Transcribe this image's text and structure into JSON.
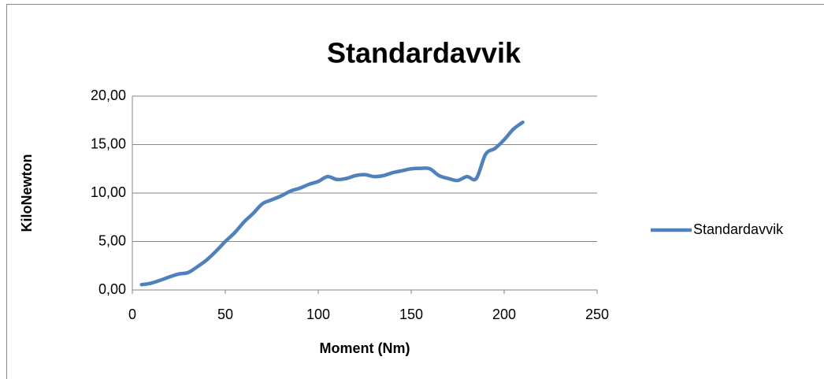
{
  "chart_data": {
    "type": "line",
    "title": "Standardavvik",
    "x_label": "Moment (Nm)",
    "y_label": "KiloNewton",
    "x": [
      5,
      10,
      15,
      20,
      25,
      30,
      35,
      40,
      45,
      50,
      55,
      60,
      65,
      70,
      75,
      80,
      85,
      90,
      95,
      100,
      105,
      110,
      115,
      120,
      125,
      130,
      135,
      140,
      145,
      150,
      155,
      160,
      165,
      170,
      175,
      180,
      185,
      190,
      195,
      200,
      205,
      210
    ],
    "series": [
      {
        "name": "Standardavvik",
        "color": "#4f81bd",
        "values": [
          0.55,
          0.7,
          1.0,
          1.35,
          1.65,
          1.8,
          2.4,
          3.1,
          4.0,
          5.0,
          5.9,
          7.0,
          7.9,
          8.9,
          9.3,
          9.7,
          10.2,
          10.5,
          10.9,
          11.2,
          11.7,
          11.4,
          11.5,
          11.8,
          11.9,
          11.7,
          11.8,
          12.1,
          12.3,
          12.5,
          12.55,
          12.5,
          11.8,
          11.5,
          11.3,
          11.7,
          11.5,
          14.0,
          14.6,
          15.5,
          16.6,
          17.3
        ]
      }
    ],
    "xlim": [
      0,
      250
    ],
    "xticks": [
      0,
      50,
      100,
      150,
      200,
      250
    ],
    "ylim": [
      0,
      20
    ],
    "yticks": [
      {
        "value": 0,
        "label": "0,00"
      },
      {
        "value": 5,
        "label": "5,00"
      },
      {
        "value": 10,
        "label": "10,00"
      },
      {
        "value": 15,
        "label": "15,00"
      },
      {
        "value": 20,
        "label": "20,00"
      }
    ],
    "grid": true,
    "legend": "right"
  }
}
